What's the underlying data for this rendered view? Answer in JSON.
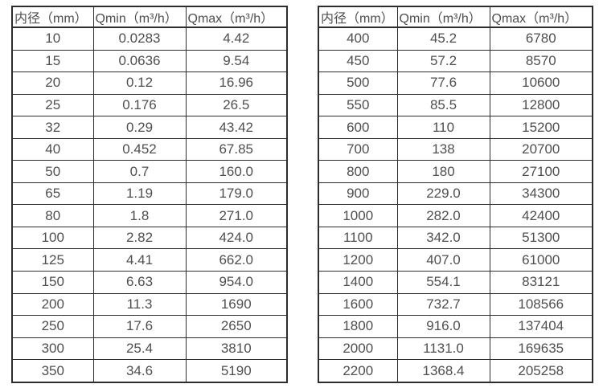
{
  "colors": {
    "background": "#ffffff",
    "border": "#2d2d2d",
    "text": "#4f4f4f"
  },
  "tables": [
    {
      "name": "small-diameter-flow-table",
      "headers": [
        "内径（mm）",
        "Qmin（m³/h）",
        "Qmax（m³/h）"
      ],
      "rows": [
        [
          "10",
          "0.0283",
          "4.42"
        ],
        [
          "15",
          "0.0636",
          "9.54"
        ],
        [
          "20",
          "0.12",
          "16.96"
        ],
        [
          "25",
          "0.176",
          "26.5"
        ],
        [
          "32",
          "0.29",
          "43.42"
        ],
        [
          "40",
          "0.452",
          "67.85"
        ],
        [
          "50",
          "0.7",
          "160.0"
        ],
        [
          "65",
          "1.19",
          "179.0"
        ],
        [
          "80",
          "1.8",
          "271.0"
        ],
        [
          "100",
          "2.82",
          "424.0"
        ],
        [
          "125",
          "4.41",
          "662.0"
        ],
        [
          "150",
          "6.63",
          "954.0"
        ],
        [
          "200",
          "11.3",
          "1690"
        ],
        [
          "250",
          "17.6",
          "2650"
        ],
        [
          "300",
          "25.4",
          "3810"
        ],
        [
          "350",
          "34.6",
          "5190"
        ]
      ]
    },
    {
      "name": "large-diameter-flow-table",
      "headers": [
        "内径（mm）",
        "Qmin（m³/h）",
        "Qmax（m³/h）"
      ],
      "rows": [
        [
          "400",
          "45.2",
          "6780"
        ],
        [
          "450",
          "57.2",
          "8570"
        ],
        [
          "500",
          "77.6",
          "10600"
        ],
        [
          "550",
          "85.5",
          "12800"
        ],
        [
          "600",
          "110",
          "15200"
        ],
        [
          "700",
          "138",
          "20700"
        ],
        [
          "800",
          "180",
          "27100"
        ],
        [
          "900",
          "229.0",
          "34300"
        ],
        [
          "1000",
          "282.0",
          "42400"
        ],
        [
          "1100",
          "342.0",
          "51300"
        ],
        [
          "1200",
          "407.0",
          "61000"
        ],
        [
          "1400",
          "554.1",
          "83121"
        ],
        [
          "1600",
          "732.7",
          "108566"
        ],
        [
          "1800",
          "916.0",
          "137404"
        ],
        [
          "2000",
          "1131.0",
          "169635"
        ],
        [
          "2200",
          "1368.4",
          "205258"
        ]
      ]
    }
  ]
}
